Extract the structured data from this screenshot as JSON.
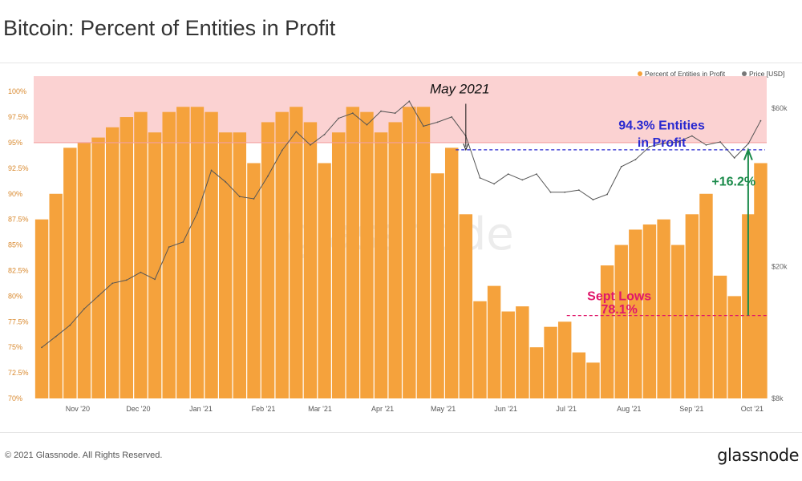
{
  "page": {
    "title": "Bitcoin: Percent of Entities in Profit",
    "copyright": "© 2021 Glassnode. All Rights Reserved.",
    "logo": "glassnode",
    "watermark": "glassnode"
  },
  "colors": {
    "bars": "#f5a23c",
    "price_line": "#555555",
    "highlight_band": "#fbd2d2",
    "threshold_line": "#f2a0a0",
    "left_axis_labels": "#d9892e",
    "right_axis_labels": "#666666",
    "entities_annotation": "#2a2ad0",
    "sept_annotation": "#e0176a",
    "increase_annotation": "#1a8a4a"
  },
  "chart_data": {
    "type": "bar",
    "legend": {
      "position": "top-right",
      "entries": [
        {
          "name": "Percent of Entities in Profit",
          "color": "#f5a23c"
        },
        {
          "name": "Price [USD]",
          "color": "#777777"
        }
      ]
    },
    "x_ticks": [
      "Nov '20",
      "Dec '20",
      "Jan '21",
      "Feb '21",
      "Mar '21",
      "Apr '21",
      "May '21",
      "Jun '21",
      "Jul '21",
      "Aug '21",
      "Sep '21",
      "Oct '21"
    ],
    "y_left": {
      "ticks": [
        "70%",
        "72.5%",
        "75%",
        "77.5%",
        "80%",
        "82.5%",
        "85%",
        "87.5%",
        "90%",
        "92.5%",
        "95%",
        "97.5%",
        "100%"
      ],
      "range": [
        70,
        101.5
      ]
    },
    "y_right": {
      "scale": "log",
      "ticks": [
        "$8k",
        "$20k",
        "$60k"
      ],
      "range": [
        8000,
        75000
      ]
    },
    "series": [
      {
        "name": "Percent of Entities in Profit",
        "type": "bar",
        "x": [
          "2020-10-15",
          "2020-10-22",
          "2020-10-29",
          "2020-11-05",
          "2020-11-12",
          "2020-11-19",
          "2020-11-26",
          "2020-12-03",
          "2020-12-10",
          "2020-12-17",
          "2020-12-24",
          "2020-12-31",
          "2021-01-07",
          "2021-01-14",
          "2021-01-21",
          "2021-01-28",
          "2021-02-04",
          "2021-02-11",
          "2021-02-18",
          "2021-02-25",
          "2021-03-04",
          "2021-03-11",
          "2021-03-18",
          "2021-03-25",
          "2021-04-01",
          "2021-04-08",
          "2021-04-15",
          "2021-04-22",
          "2021-04-29",
          "2021-05-06",
          "2021-05-13",
          "2021-05-20",
          "2021-05-27",
          "2021-06-03",
          "2021-06-10",
          "2021-06-17",
          "2021-06-24",
          "2021-07-01",
          "2021-07-08",
          "2021-07-15",
          "2021-07-22",
          "2021-07-29",
          "2021-08-05",
          "2021-08-12",
          "2021-08-19",
          "2021-08-26",
          "2021-09-02",
          "2021-09-09",
          "2021-09-16",
          "2021-09-23",
          "2021-09-30",
          "2021-10-06"
        ],
        "values": [
          87.5,
          90,
          94.5,
          95,
          95.5,
          96.5,
          97.5,
          98,
          96,
          98,
          98.5,
          98.5,
          98,
          96,
          96,
          93,
          97,
          98,
          98.5,
          97,
          93,
          96,
          98.5,
          98,
          96,
          97,
          98.5,
          98.5,
          92,
          94.5,
          88,
          79.5,
          81,
          78.5,
          79,
          75,
          77,
          77.5,
          74.5,
          73.5,
          83,
          85,
          86.5,
          87,
          87.5,
          85,
          88,
          90,
          82,
          80,
          88,
          93
        ]
      },
      {
        "name": "Price [USD]",
        "type": "line",
        "x": [
          "2020-10-15",
          "2020-10-22",
          "2020-10-29",
          "2020-11-05",
          "2020-11-12",
          "2020-11-19",
          "2020-11-26",
          "2020-12-03",
          "2020-12-10",
          "2020-12-17",
          "2020-12-24",
          "2020-12-31",
          "2021-01-07",
          "2021-01-14",
          "2021-01-21",
          "2021-01-28",
          "2021-02-04",
          "2021-02-11",
          "2021-02-18",
          "2021-02-25",
          "2021-03-04",
          "2021-03-11",
          "2021-03-18",
          "2021-03-25",
          "2021-04-01",
          "2021-04-08",
          "2021-04-15",
          "2021-04-22",
          "2021-04-29",
          "2021-05-06",
          "2021-05-13",
          "2021-05-20",
          "2021-05-27",
          "2021-06-03",
          "2021-06-10",
          "2021-06-17",
          "2021-06-24",
          "2021-07-01",
          "2021-07-08",
          "2021-07-15",
          "2021-07-22",
          "2021-07-29",
          "2021-08-05",
          "2021-08-12",
          "2021-08-19",
          "2021-08-26",
          "2021-09-02",
          "2021-09-09",
          "2021-09-16",
          "2021-09-23",
          "2021-09-30",
          "2021-10-06"
        ],
        "values": [
          11400,
          12300,
          13300,
          14900,
          16300,
          17800,
          18200,
          19200,
          18300,
          22900,
          23700,
          29000,
          39000,
          36000,
          32500,
          32000,
          37500,
          44800,
          51000,
          46500,
          50000,
          56000,
          58000,
          53500,
          58800,
          58000,
          63000,
          53000,
          54500,
          56500,
          49500,
          37000,
          35500,
          38000,
          36500,
          38000,
          33500,
          33500,
          34000,
          31800,
          33000,
          40000,
          42000,
          46000,
          47000,
          47500,
          49500,
          46500,
          47500,
          42500,
          47000,
          55000
        ]
      }
    ],
    "reference_lines": [
      {
        "label": "",
        "axis": "left",
        "value": 95,
        "color": "#f2a0a0"
      },
      {
        "label": "",
        "axis": "left",
        "value": 94.3,
        "color": "#2a2ad0",
        "dashed": true
      },
      {
        "label": "",
        "axis": "left",
        "value": 78.1,
        "color": "#e0176a",
        "dashed": true
      }
    ],
    "highlight_band": {
      "axis": "left",
      "from": 95,
      "to": 101.5
    },
    "annotations": [
      {
        "text": "May 2021",
        "x": "2021-05-10",
        "y": 99.8
      },
      {
        "text": "94.3% Entities",
        "x": "2021-08-18",
        "y": 96.3
      },
      {
        "text": "in Profit",
        "x": "2021-08-18",
        "y": 94.9
      },
      {
        "text": "+16.2%",
        "x": "2021-09-25",
        "y": 90.8
      },
      {
        "text": "Sept Lows",
        "x": "2021-07-28",
        "y": 79.6
      },
      {
        "text": "78.1%",
        "x": "2021-07-28",
        "y": 78.3
      }
    ]
  }
}
